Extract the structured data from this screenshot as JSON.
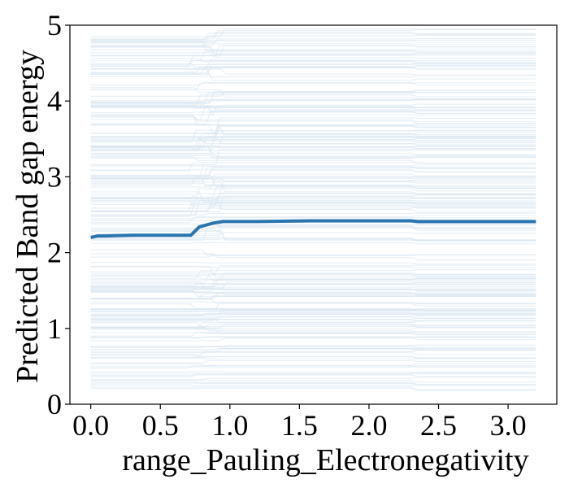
{
  "chart_data": {
    "type": "line",
    "title": "",
    "xlabel": "range_Pauling_Electronegativity",
    "ylabel": "Predicted Band gap energy",
    "xlim": [
      -0.15,
      3.35
    ],
    "ylim": [
      0,
      5
    ],
    "xticks": [
      "0.0",
      "0.5",
      "1.0",
      "1.5",
      "2.0",
      "2.5",
      "3.0"
    ],
    "yticks": [
      "0",
      "1",
      "2",
      "3",
      "4",
      "5"
    ],
    "grid": false,
    "legend": "none",
    "series": [
      {
        "role": "average",
        "color": "#2a75b0",
        "x": [
          0.0,
          0.05,
          0.1,
          0.3,
          0.5,
          0.72,
          0.78,
          0.88,
          0.95,
          1.2,
          1.6,
          2.0,
          2.3,
          2.35,
          2.8,
          3.0,
          3.2
        ],
        "y": [
          2.2,
          2.22,
          2.22,
          2.23,
          2.23,
          2.23,
          2.34,
          2.39,
          2.41,
          2.41,
          2.42,
          2.42,
          2.42,
          2.41,
          2.41,
          2.41,
          2.41
        ]
      }
    ],
    "individual_lines_color": "#d5e3ef",
    "individual_lines_count": 220,
    "individual_lines_y_range": [
      0.2,
      4.9
    ],
    "individual_lines_x_range": [
      0.0,
      3.2
    ]
  }
}
